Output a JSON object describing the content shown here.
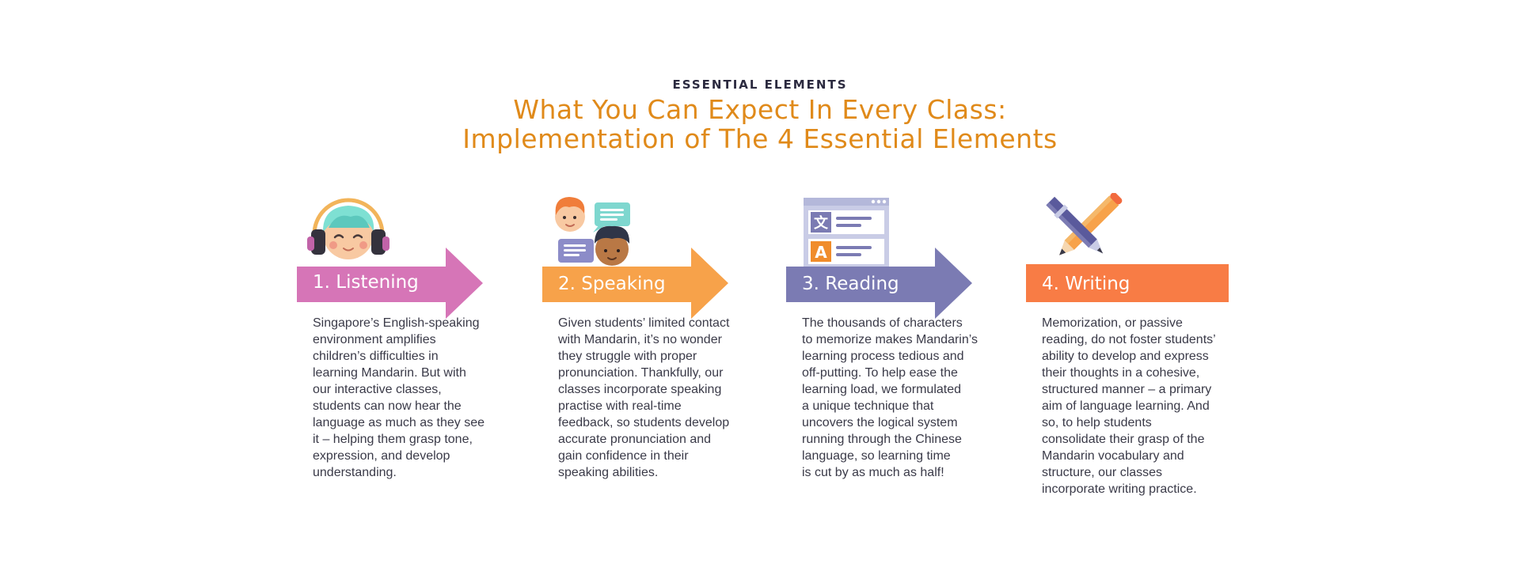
{
  "header": {
    "eyebrow": "ESSENTIAL ELEMENTS",
    "title_line1": "What You Can Expect In Every Class:",
    "title_line2": "Implementation of The 4 Essential Elements"
  },
  "colors": {
    "listening": "#d675b7",
    "speaking": "#f7a24a",
    "reading": "#7b7bb3",
    "writing": "#f87c45",
    "title": "#e08a1a"
  },
  "elements": [
    {
      "label": "1. Listening",
      "icon": "listening-child-headphones-icon",
      "lines": [
        "Singapore’s English-speaking",
        "environment amplifies",
        "children’s difficulties in",
        "learning Mandarin. But with",
        "our interactive classes,",
        "students can now hear the",
        "language as much as they see",
        "it – helping them grasp tone,",
        "expression, and develop",
        "understanding."
      ]
    },
    {
      "label": "2. Speaking",
      "icon": "speaking-chat-icon",
      "lines": [
        "Given students’ limited contact",
        "with Mandarin, it’s no wonder",
        "they struggle with proper",
        "pronunciation. Thankfully, our",
        "classes incorporate speaking",
        "practise with real-time",
        "feedback, so students develop",
        "accurate pronunciation and",
        "gain confidence in their",
        "speaking abilities."
      ]
    },
    {
      "label": "3. Reading",
      "icon": "reading-translation-window-icon",
      "lines": [
        "The thousands of characters",
        "to memorize makes Mandarin’s",
        "learning process tedious and",
        "off-putting. To help ease the",
        "learning load, we formulated",
        "a unique technique that",
        "uncovers the logical system",
        "running through the Chinese",
        "language, so learning time",
        "is cut by as much as half!"
      ]
    },
    {
      "label": "4. Writing",
      "icon": "writing-pencil-pen-icon",
      "lines": [
        "Memorization, or passive",
        "reading, do not foster students’",
        "ability to develop and express",
        "their thoughts in a cohesive,",
        "structured manner – a primary",
        "aim of language learning. And",
        "so, to help students",
        "consolidate their grasp of the",
        "Mandarin vocabulary and",
        "structure, our classes",
        "incorporate writing practice."
      ]
    }
  ]
}
